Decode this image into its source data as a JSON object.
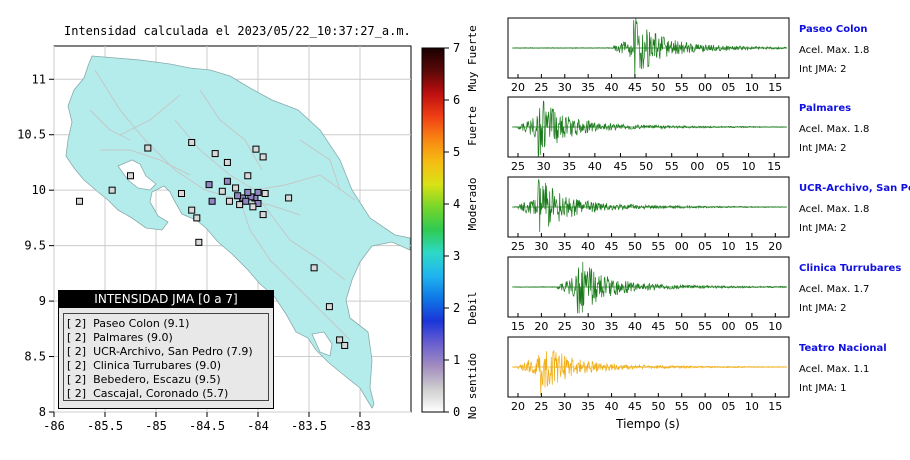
{
  "map": {
    "title": "Intensidad calculada el 2023/05/22_10:37:27_a.m.",
    "x_ticks": [
      "-86",
      "-85.5",
      "-85",
      "-84.5",
      "-84",
      "-83.5",
      "-83"
    ],
    "y_ticks": [
      "11",
      "10.5",
      "10",
      "9.5",
      "9",
      "8.5",
      "8"
    ],
    "xlim": [
      -86,
      -82.5
    ],
    "ylim": [
      8,
      11.3
    ]
  },
  "legend": {
    "title": "INTENSIDAD JMA [0 a 7]",
    "items": [
      "[ 2]  Paseo Colon (9.1)",
      "[ 2]  Palmares (9.0)",
      "[ 2]  UCR-Archivo, San Pedro (7.9)",
      "[ 2]  Clinica Turrubares (9.0)",
      "[ 2]  Bebedero, Escazu (9.5)",
      "[ 2]  Cascajal, Coronado (5.7)"
    ]
  },
  "colorbar": {
    "ticks": [
      "0",
      "1",
      "2",
      "3",
      "4",
      "5",
      "6",
      "7"
    ],
    "labels": [
      "No sentido",
      "Debil",
      "Moderado",
      "Fuerte",
      "Muy Fuerte"
    ],
    "colors": [
      "#ffffff",
      "#cfcfcf",
      "#a38dbf",
      "#6a5fd0",
      "#1a35d8",
      "#0f77e6",
      "#1fb5ef",
      "#2ed9c6",
      "#2fca52",
      "#76d62c",
      "#d9e215",
      "#f6bd13",
      "#f88513",
      "#ef3e14",
      "#bd0f0f",
      "#5a0808",
      "#1a0000"
    ]
  },
  "chart_data": {
    "type": "scatter",
    "stations": [
      {
        "lon": -84.03,
        "lat": 9.93,
        "intensity": 2
      },
      {
        "lon": -84.15,
        "lat": 9.93,
        "intensity": 2
      },
      {
        "lon": -84.07,
        "lat": 9.94,
        "intensity": 2
      },
      {
        "lon": -84.45,
        "lat": 9.9,
        "intensity": 2
      },
      {
        "lon": -84.2,
        "lat": 9.95,
        "intensity": 2
      },
      {
        "lon": -84.0,
        "lat": 9.98,
        "intensity": 2
      },
      {
        "lon": -84.1,
        "lat": 9.98,
        "intensity": 2
      },
      {
        "lon": -84.0,
        "lat": 9.88,
        "intensity": 2
      },
      {
        "lon": -84.18,
        "lat": 9.87,
        "intensity": 1
      },
      {
        "lon": -84.28,
        "lat": 9.9,
        "intensity": 1
      },
      {
        "lon": -84.3,
        "lat": 10.08,
        "intensity": 2
      },
      {
        "lon": -84.48,
        "lat": 10.05,
        "intensity": 2
      },
      {
        "lon": -83.93,
        "lat": 9.97,
        "intensity": 1
      },
      {
        "lon": -84.05,
        "lat": 9.85,
        "intensity": 1
      },
      {
        "lon": -84.12,
        "lat": 9.9,
        "intensity": 2
      },
      {
        "lon": -84.58,
        "lat": 9.53,
        "intensity": 1
      },
      {
        "lon": -84.42,
        "lat": 10.33,
        "intensity": 1
      },
      {
        "lon": -84.3,
        "lat": 10.25,
        "intensity": 1
      },
      {
        "lon": -84.02,
        "lat": 10.37,
        "intensity": 1
      },
      {
        "lon": -83.95,
        "lat": 10.3,
        "intensity": 1
      },
      {
        "lon": -84.1,
        "lat": 10.13,
        "intensity": 1
      },
      {
        "lon": -84.22,
        "lat": 10.02,
        "intensity": 1
      },
      {
        "lon": -84.35,
        "lat": 9.99,
        "intensity": 1
      },
      {
        "lon": -85.08,
        "lat": 10.38,
        "intensity": 1
      },
      {
        "lon": -85.25,
        "lat": 10.13,
        "intensity": 1
      },
      {
        "lon": -85.43,
        "lat": 10.0,
        "intensity": 1
      },
      {
        "lon": -85.75,
        "lat": 9.9,
        "intensity": 1
      },
      {
        "lon": -84.75,
        "lat": 9.97,
        "intensity": 1
      },
      {
        "lon": -84.6,
        "lat": 9.75,
        "intensity": 1
      },
      {
        "lon": -84.65,
        "lat": 9.82,
        "intensity": 1
      },
      {
        "lon": -83.7,
        "lat": 9.93,
        "intensity": 1
      },
      {
        "lon": -83.95,
        "lat": 9.78,
        "intensity": 1
      },
      {
        "lon": -83.45,
        "lat": 9.3,
        "intensity": 1
      },
      {
        "lon": -83.3,
        "lat": 8.95,
        "intensity": 1
      },
      {
        "lon": -83.2,
        "lat": 8.65,
        "intensity": 1
      },
      {
        "lon": -83.15,
        "lat": 8.6,
        "intensity": 1
      },
      {
        "lon": -84.65,
        "lat": 10.43,
        "intensity": 1
      }
    ]
  },
  "seismograms": {
    "xlabel": "Tiempo (s)",
    "panels": [
      {
        "name": "Paseo Colon",
        "accel": "Acel. Max. 1.8",
        "int": "Int JMA: 2",
        "color": "#1a7a1a",
        "ticks": [
          "20",
          "25",
          "30",
          "35",
          "40",
          "45",
          "50",
          "55",
          "00",
          "05",
          "10",
          "15"
        ],
        "arrival": 0.44,
        "peak": 0.95
      },
      {
        "name": "Palmares",
        "accel": "Acel. Max. 1.8",
        "int": "Int JMA: 2",
        "color": "#1a7a1a",
        "ticks": [
          "25",
          "30",
          "35",
          "40",
          "45",
          "50",
          "55",
          "00",
          "05",
          "10",
          "15"
        ],
        "arrival": 0.1,
        "peak": 0.95
      },
      {
        "name": "UCR-Archivo, San Pedro",
        "accel": "Acel. Max. 1.8",
        "int": "Int JMA: 2",
        "color": "#1a7a1a",
        "ticks": [
          "25",
          "30",
          "35",
          "40",
          "45",
          "50",
          "55",
          "00",
          "05",
          "10",
          "15",
          "20"
        ],
        "arrival": 0.1,
        "peak": 0.95
      },
      {
        "name": "Clinica Turrubares",
        "accel": "Acel. Max. 1.7",
        "int": "Int JMA: 2",
        "color": "#1a7a1a",
        "ticks": [
          "15",
          "20",
          "25",
          "30",
          "35",
          "40",
          "45",
          "50",
          "55",
          "00",
          "05",
          "10"
        ],
        "arrival": 0.24,
        "peak": 0.9
      },
      {
        "name": "Teatro Nacional",
        "accel": "Acel. Max. 1.1",
        "int": "Int JMA: 1",
        "color": "#f0ac14",
        "ticks": [
          "20",
          "25",
          "30",
          "35",
          "40",
          "45",
          "50",
          "55",
          "00",
          "05",
          "10",
          "15"
        ],
        "arrival": 0.1,
        "peak": 0.95
      }
    ]
  }
}
